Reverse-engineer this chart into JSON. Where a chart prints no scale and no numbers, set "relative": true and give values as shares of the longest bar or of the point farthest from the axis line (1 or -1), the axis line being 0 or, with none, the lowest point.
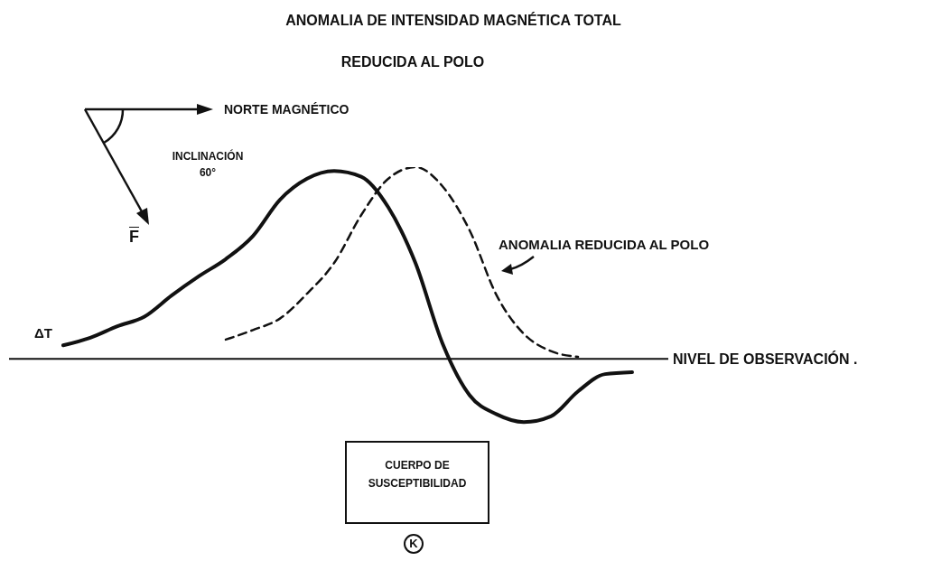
{
  "chart_data": {
    "type": "line",
    "title": "ANOMALIA DE INTENSIDAD MAGNÉTICA TOTAL",
    "subtitle": "REDUCIDA AL POLO",
    "relative": true,
    "categories": [
      null,
      null,
      null,
      null,
      null,
      null,
      null,
      null,
      null,
      null,
      null,
      null,
      null,
      null,
      null,
      null,
      null,
      null,
      null,
      null,
      null,
      null
    ],
    "series": [
      {
        "name": "ΔT",
        "color": "#111111",
        "line_style": "solid",
        "values": [
          0.07,
          0.11,
          0.17,
          0.22,
          0.33,
          0.43,
          0.52,
          0.64,
          0.83,
          0.94,
          0.98,
          0.95,
          0.79,
          0.5,
          0.08,
          -0.19,
          -0.29,
          -0.33,
          -0.3,
          -0.17,
          -0.08,
          -0.07
        ]
      },
      {
        "name": "ANOMALIA REDUCIDA AL POLO",
        "color": "#111111",
        "line_style": "dashed",
        "values": [
          null,
          null,
          null,
          null,
          null,
          null,
          0.1,
          0.15,
          0.21,
          0.34,
          0.5,
          0.75,
          0.94,
          1.0,
          0.9,
          0.67,
          0.33,
          0.13,
          0.04,
          0.01,
          null,
          null
        ]
      }
    ],
    "ref_lines": [
      {
        "axis": "y",
        "value": 0,
        "label": "NIVEL DE OBSERVACIÓN ."
      }
    ],
    "annotations": [
      "NORTE MAGNÉTICO",
      "INCLINACIÓN 60°",
      "F",
      "CUERPO DE SUSCEPTIBILIDAD",
      "K"
    ],
    "grid": false,
    "legend": false,
    "marker": "none"
  }
}
